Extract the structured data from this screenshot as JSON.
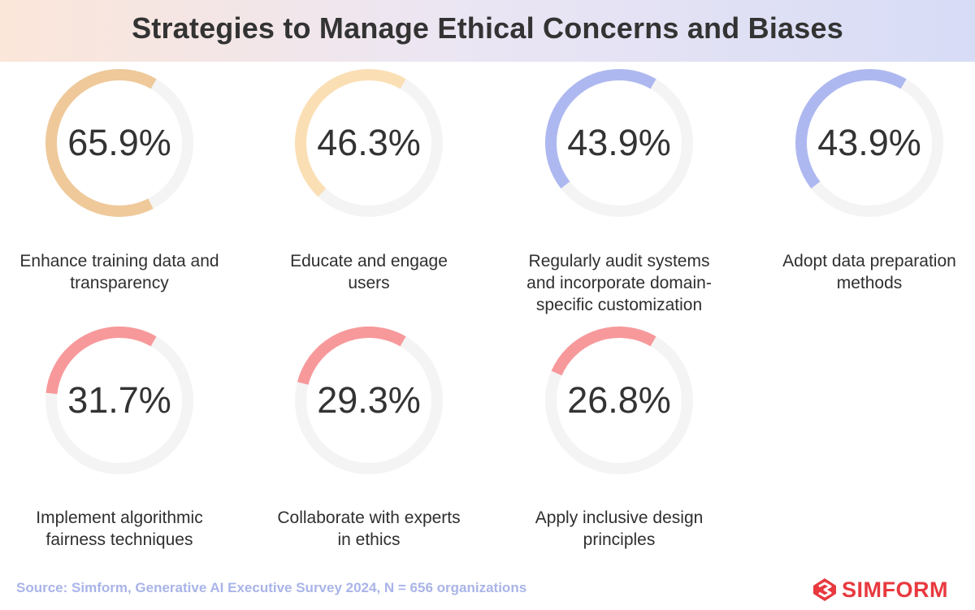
{
  "chart_data": {
    "type": "donut",
    "title": "Strategies to Manage Ethical Concerns and Biases",
    "unit": "%",
    "items": [
      {
        "value": 65.9,
        "display": "65.9%",
        "label_lines": [
          "Enhance training data and",
          "transparency"
        ],
        "color": "#efc99a"
      },
      {
        "value": 46.3,
        "display": "46.3%",
        "label_lines": [
          "Educate and engage",
          "users"
        ],
        "color": "#fbdfb4"
      },
      {
        "value": 43.9,
        "display": "43.9%",
        "label_lines": [
          "Regularly audit systems",
          "and incorporate domain-",
          "specific customization"
        ],
        "color": "#aeb8f0"
      },
      {
        "value": 43.9,
        "display": "43.9%",
        "label_lines": [
          "Adopt data preparation",
          "methods"
        ],
        "color": "#aeb8f0"
      },
      {
        "value": 31.7,
        "display": "31.7%",
        "label_lines": [
          "Implement algorithmic",
          "fairness techniques"
        ],
        "color": "#f7999b"
      },
      {
        "value": 29.3,
        "display": "29.3%",
        "label_lines": [
          "Collaborate with experts",
          "in ethics"
        ],
        "color": "#f7999b"
      },
      {
        "value": 26.8,
        "display": "26.8%",
        "label_lines": [
          "Apply inclusive design",
          "principles"
        ],
        "color": "#f7999b"
      }
    ],
    "track_color": "#f4f4f4"
  },
  "footer": {
    "source": "Source: Simform, Generative AI Executive Survey 2024, N = 656 organizations",
    "brand": "SIMFORM"
  }
}
